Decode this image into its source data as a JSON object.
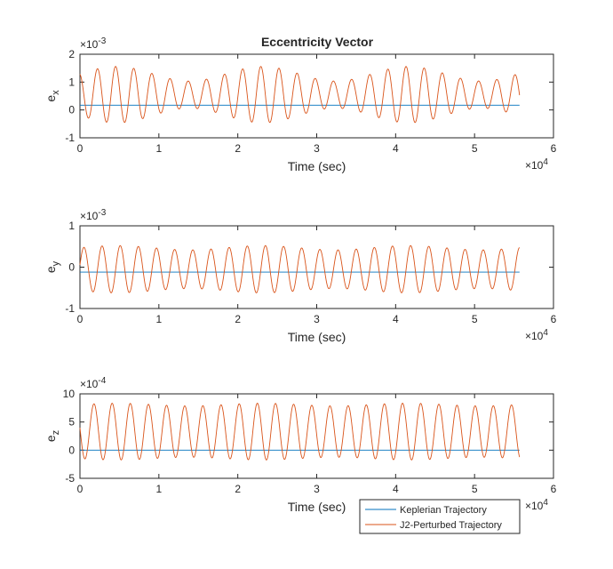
{
  "figure": {
    "title": "Eccentricity Vector",
    "legend_position": "bottom-right",
    "legend": [
      {
        "label": "Keplerian Trajectory",
        "color": "#0072BD"
      },
      {
        "label": "J2-Perturbed Trajectory",
        "color": "#D95319"
      }
    ]
  },
  "chart_data": [
    {
      "type": "line",
      "ylabel_base": "e",
      "ylabel_sub": "x",
      "xlabel": "Time (sec)",
      "xlim": [
        0,
        60000
      ],
      "ylim": [
        -0.001,
        0.002
      ],
      "xticks": [
        "0",
        "1",
        "2",
        "3",
        "4",
        "5",
        "6"
      ],
      "yticks": [
        "-1",
        "0",
        "1",
        "2"
      ],
      "x_exponent": "4",
      "y_exponent": "-3",
      "grid": false,
      "series": [
        {
          "name": "Keplerian Trajectory",
          "color": "#0072BD",
          "x": [
            0,
            55700
          ],
          "y": [
            0.00017,
            0.00017
          ]
        },
        {
          "name": "J2-Perturbed Trajectory",
          "color": "#D95319",
          "x_end": 55700,
          "mean": 0.00055,
          "amplitude": 0.00075,
          "period": 2300,
          "mod_period": 18500,
          "mod_depth": 0.35,
          "phase": 1.8
        }
      ]
    },
    {
      "type": "line",
      "ylabel_base": "e",
      "ylabel_sub": "y",
      "xlabel": "Time (sec)",
      "xlim": [
        0,
        60000
      ],
      "ylim": [
        -0.001,
        0.001
      ],
      "xticks": [
        "0",
        "1",
        "2",
        "3",
        "4",
        "5",
        "6"
      ],
      "yticks": [
        "-1",
        "0",
        "1"
      ],
      "x_exponent": "4",
      "y_exponent": "-3",
      "grid": false,
      "series": [
        {
          "name": "Keplerian Trajectory",
          "color": "#0072BD",
          "x": [
            0,
            55700
          ],
          "y": [
            -0.00012,
            -0.00012
          ]
        },
        {
          "name": "J2-Perturbed Trajectory",
          "color": "#D95319",
          "x_end": 55700,
          "mean": -5e-05,
          "amplitude": 0.00052,
          "period": 2300,
          "mod_period": 18500,
          "mod_depth": 0.1,
          "phase": 0.2
        }
      ]
    },
    {
      "type": "line",
      "ylabel_base": "e",
      "ylabel_sub": "z",
      "xlabel": "Time (sec)",
      "xlim": [
        0,
        60000
      ],
      "ylim": [
        -0.0005,
        0.001
      ],
      "xticks": [
        "0",
        "1",
        "2",
        "3",
        "4",
        "5",
        "6"
      ],
      "yticks": [
        "-5",
        "0",
        "5",
        "10"
      ],
      "x_exponent": "4",
      "y_exponent": "-4",
      "grid": false,
      "series": [
        {
          "name": "Keplerian Trajectory",
          "color": "#0072BD",
          "x": [
            0,
            55700
          ],
          "y": [
            0.0,
            0.0
          ]
        },
        {
          "name": "J2-Perturbed Trajectory",
          "color": "#D95319",
          "x_end": 55700,
          "mean": 0.00033,
          "amplitude": 0.00048,
          "period": 2300,
          "mod_period": 18500,
          "mod_depth": 0.05,
          "phase": 3.0
        }
      ]
    }
  ]
}
